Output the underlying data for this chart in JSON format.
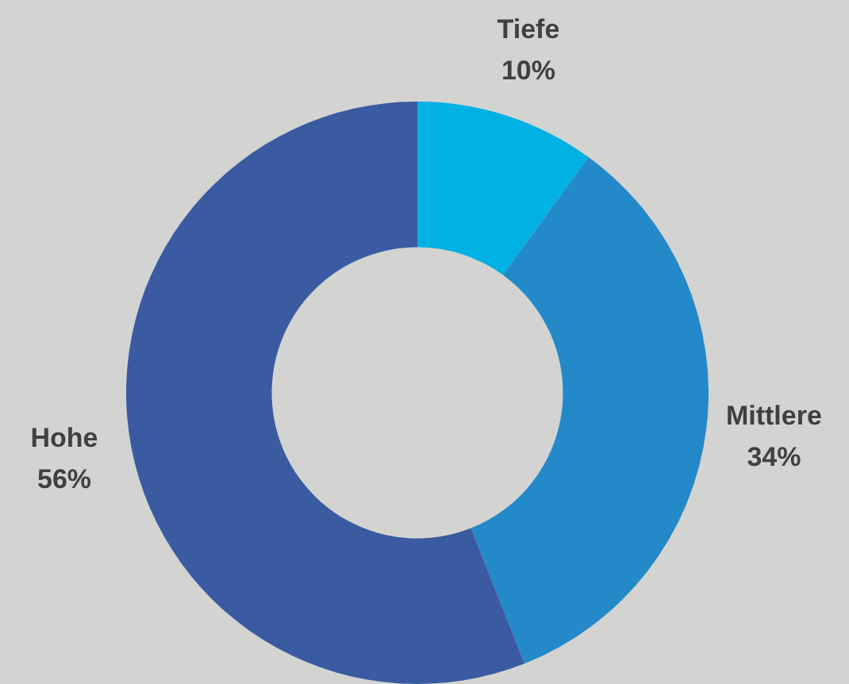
{
  "chart_data": {
    "type": "donut",
    "categories": [
      "Tiefe",
      "Mittlere",
      "Hohe"
    ],
    "values": [
      10,
      34,
      56
    ],
    "colors": [
      "#00b2e3",
      "#2389c9",
      "#3a5ba1"
    ],
    "value_labels": [
      "10%",
      "34%",
      "56%"
    ],
    "legend": false
  }
}
